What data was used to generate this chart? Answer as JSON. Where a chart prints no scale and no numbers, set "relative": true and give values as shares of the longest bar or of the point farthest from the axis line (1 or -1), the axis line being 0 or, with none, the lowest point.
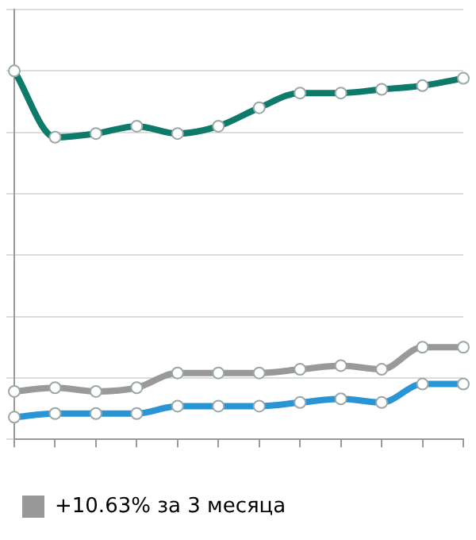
{
  "chart_data": {
    "type": "line",
    "relative": true,
    "categories": [
      null,
      null,
      null,
      null,
      null,
      null,
      null,
      null,
      null,
      null,
      null,
      null
    ],
    "series": [
      {
        "color": "#0e7a6a",
        "values": [
          1.0,
          0.82,
          0.83,
          0.85,
          0.83,
          0.85,
          0.9,
          0.94,
          0.94,
          0.95,
          0.96,
          0.98
        ]
      },
      {
        "name": "+10.63% за 3 месяца",
        "color": "#999999",
        "values": [
          0.13,
          0.14,
          0.13,
          0.14,
          0.18,
          0.18,
          0.18,
          0.19,
          0.2,
          0.19,
          0.25,
          0.25
        ]
      },
      {
        "color": "#2a95d5",
        "values": [
          0.06,
          0.07,
          0.07,
          0.07,
          0.09,
          0.09,
          0.09,
          0.1,
          0.11,
          0.1,
          0.15,
          0.15
        ]
      }
    ],
    "grid": "y",
    "legend": "bottom left",
    "marker": "circle",
    "line_style": "solid"
  }
}
